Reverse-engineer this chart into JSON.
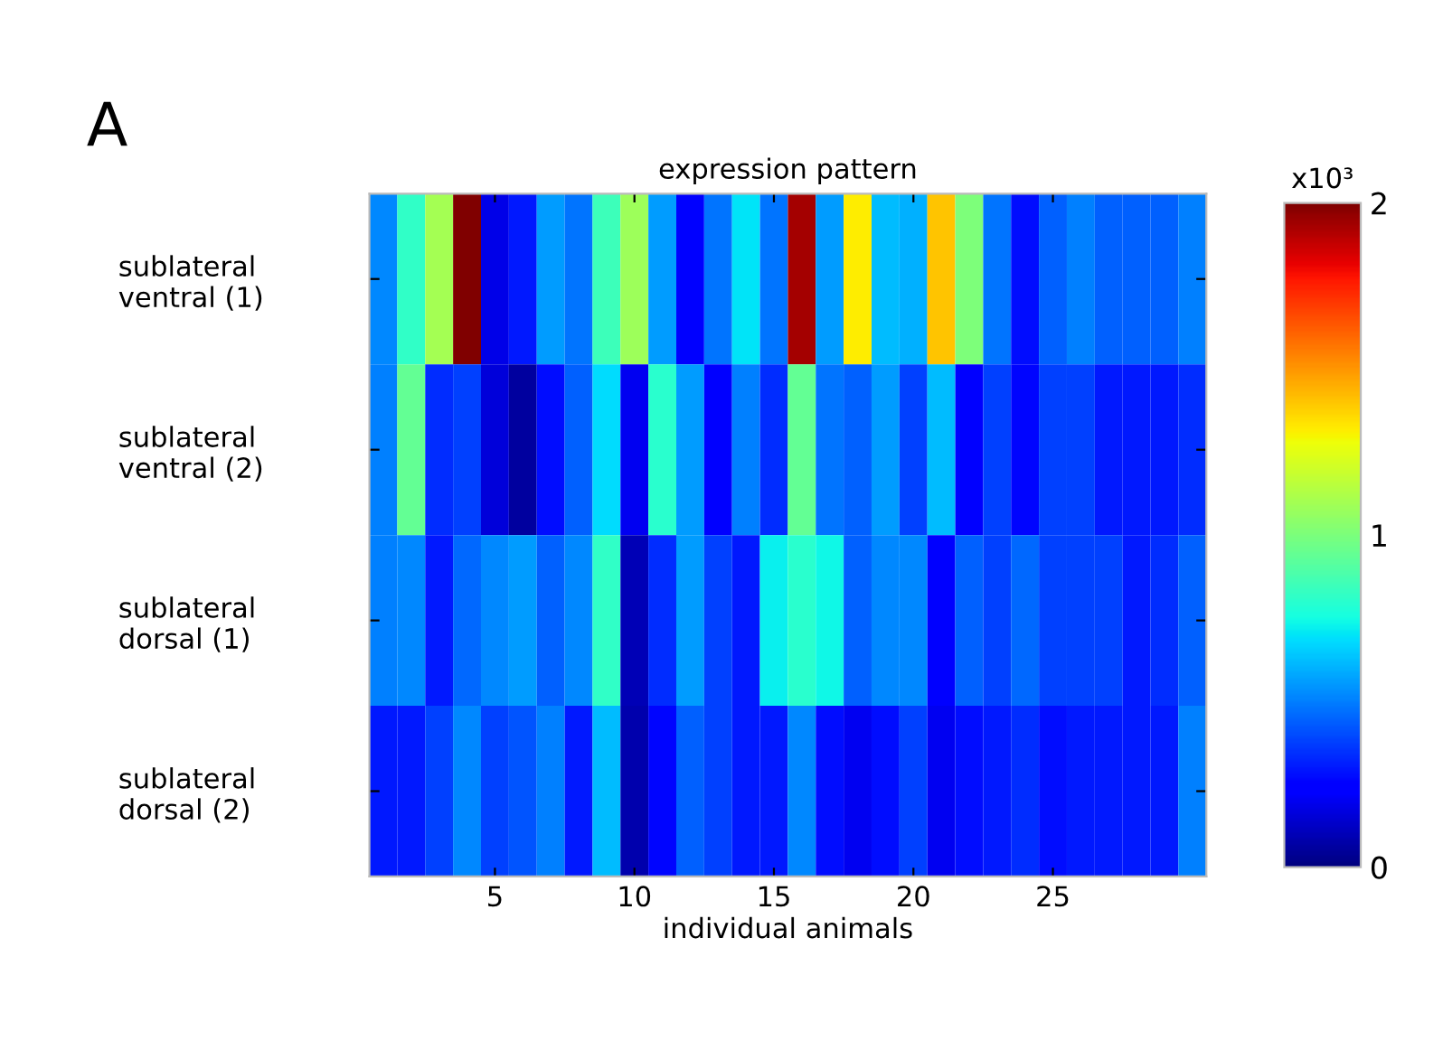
{
  "chart_data": {
    "type": "heatmap",
    "title": "expression pattern",
    "xlabel": "individual animals",
    "clabel": "x10³",
    "annotations": [
      "A"
    ],
    "x": [
      1,
      2,
      3,
      4,
      5,
      6,
      7,
      8,
      9,
      10,
      11,
      12,
      13,
      14,
      15,
      16,
      17,
      18,
      19,
      20,
      21,
      22,
      23,
      24,
      25,
      26,
      27,
      28,
      29,
      30
    ],
    "xlim": [
      0.5,
      30.5
    ],
    "xticks": [
      5,
      10,
      15,
      20,
      25
    ],
    "y_categories": [
      "sublateral\nventral (1)",
      "sublateral\nventral (2)",
      "sublateral\ndorsal (1)",
      "sublateral\ndorsal (2)"
    ],
    "cells": [
      [
        0.52,
        0.82,
        1.1,
        2.0,
        0.18,
        0.3,
        0.56,
        0.48,
        0.85,
        1.08,
        0.56,
        0.25,
        0.48,
        0.7,
        0.48,
        1.93,
        0.56,
        1.32,
        0.62,
        0.6,
        1.4,
        1.0,
        0.48,
        0.28,
        0.44,
        0.5,
        0.44,
        0.44,
        0.44,
        0.5
      ],
      [
        0.5,
        0.94,
        0.34,
        0.38,
        0.16,
        0.06,
        0.28,
        0.44,
        0.68,
        0.2,
        0.8,
        0.56,
        0.23,
        0.5,
        0.34,
        0.94,
        0.48,
        0.44,
        0.56,
        0.38,
        0.62,
        0.23,
        0.38,
        0.26,
        0.38,
        0.38,
        0.3,
        0.3,
        0.3,
        0.34
      ],
      [
        0.5,
        0.52,
        0.3,
        0.46,
        0.52,
        0.56,
        0.44,
        0.52,
        0.82,
        0.1,
        0.34,
        0.56,
        0.38,
        0.3,
        0.72,
        0.8,
        0.74,
        0.44,
        0.52,
        0.52,
        0.25,
        0.44,
        0.38,
        0.46,
        0.38,
        0.38,
        0.38,
        0.3,
        0.34,
        0.44
      ],
      [
        0.3,
        0.3,
        0.38,
        0.52,
        0.38,
        0.42,
        0.5,
        0.3,
        0.62,
        0.08,
        0.26,
        0.44,
        0.38,
        0.3,
        0.3,
        0.52,
        0.28,
        0.2,
        0.28,
        0.38,
        0.2,
        0.28,
        0.3,
        0.34,
        0.28,
        0.3,
        0.3,
        0.3,
        0.3,
        0.5
      ]
    ],
    "clim": [
      0,
      2
    ],
    "cticks": [
      0,
      1,
      2
    ]
  }
}
